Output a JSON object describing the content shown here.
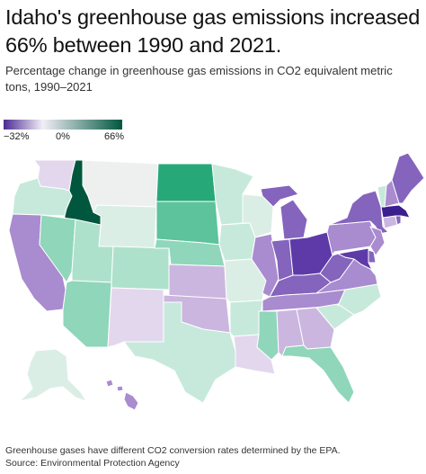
{
  "header": {
    "title": "Idaho's greenhouse gas emissions increased 66% between 1990 and 2021.",
    "subtitle": "Percentage change in greenhouse gas emissions in CO2 equivalent metric tons, 1990–2021"
  },
  "legend": {
    "min_label": "−32%",
    "mid_label": "0%",
    "max_label": "66%",
    "colors": {
      "low": "#4b2a93",
      "mid": "#f2eef7",
      "high": "#00573e"
    }
  },
  "footer": {
    "note": "Greenhouse gases have different CO2 conversion rates determined by the EPA.",
    "source": "Source: Environmental Protection Agency"
  },
  "colors": {
    "c-32": "#3b1f8f",
    "c-25": "#5e3aa8",
    "c-18": "#8464bc",
    "c-12": "#a98bcf",
    "c-6": "#cbb6e0",
    "c-2": "#e3d7ee",
    "c0": "#eef0f0",
    "c5": "#dbeee6",
    "c12": "#c6e9dc",
    "c20": "#aee1cc",
    "c30": "#8fd6ba",
    "c40": "#5cc39c",
    "c50": "#27a878",
    "c66": "#00573e"
  },
  "states": [
    {
      "id": "WA",
      "color_key": "c-2"
    },
    {
      "id": "OR",
      "color_key": "c12"
    },
    {
      "id": "CA",
      "color_key": "c-12"
    },
    {
      "id": "ID",
      "color_key": "c66"
    },
    {
      "id": "NV",
      "color_key": "c30"
    },
    {
      "id": "MT",
      "color_key": "c0"
    },
    {
      "id": "WY",
      "color_key": "c5"
    },
    {
      "id": "UT",
      "color_key": "c20"
    },
    {
      "id": "AZ",
      "color_key": "c30"
    },
    {
      "id": "CO",
      "color_key": "c20"
    },
    {
      "id": "NM",
      "color_key": "c-2"
    },
    {
      "id": "ND",
      "color_key": "c50"
    },
    {
      "id": "SD",
      "color_key": "c40"
    },
    {
      "id": "NE",
      "color_key": "c30"
    },
    {
      "id": "KS",
      "color_key": "c-6"
    },
    {
      "id": "OK",
      "color_key": "c-6"
    },
    {
      "id": "TX",
      "color_key": "c12"
    },
    {
      "id": "MN",
      "color_key": "c12"
    },
    {
      "id": "IA",
      "color_key": "c12"
    },
    {
      "id": "MO",
      "color_key": "c5"
    },
    {
      "id": "AR",
      "color_key": "c12"
    },
    {
      "id": "LA",
      "color_key": "c-2"
    },
    {
      "id": "WI",
      "color_key": "c5"
    },
    {
      "id": "IL",
      "color_key": "c-12"
    },
    {
      "id": "MI",
      "color_key": "c-18"
    },
    {
      "id": "IN",
      "color_key": "c-18"
    },
    {
      "id": "OH",
      "color_key": "c-25"
    },
    {
      "id": "KY",
      "color_key": "c-18"
    },
    {
      "id": "TN",
      "color_key": "c-12"
    },
    {
      "id": "MS",
      "color_key": "c30"
    },
    {
      "id": "AL",
      "color_key": "c-6"
    },
    {
      "id": "GA",
      "color_key": "c-6"
    },
    {
      "id": "FL",
      "color_key": "c30"
    },
    {
      "id": "SC",
      "color_key": "c12"
    },
    {
      "id": "NC",
      "color_key": "c12"
    },
    {
      "id": "VA",
      "color_key": "c-12"
    },
    {
      "id": "WV",
      "color_key": "c-18"
    },
    {
      "id": "PA",
      "color_key": "c-12"
    },
    {
      "id": "NY",
      "color_key": "c-18"
    },
    {
      "id": "NJ",
      "color_key": "c-12"
    },
    {
      "id": "DE",
      "color_key": "c-18"
    },
    {
      "id": "MD",
      "color_key": "c-25"
    },
    {
      "id": "CT",
      "color_key": "c-6"
    },
    {
      "id": "RI",
      "color_key": "c-18"
    },
    {
      "id": "MA",
      "color_key": "c-32"
    },
    {
      "id": "VT",
      "color_key": "c12"
    },
    {
      "id": "NH",
      "color_key": "c-12"
    },
    {
      "id": "ME",
      "color_key": "c-18"
    },
    {
      "id": "AK",
      "color_key": "c5"
    },
    {
      "id": "HI",
      "color_key": "c-12"
    }
  ]
}
